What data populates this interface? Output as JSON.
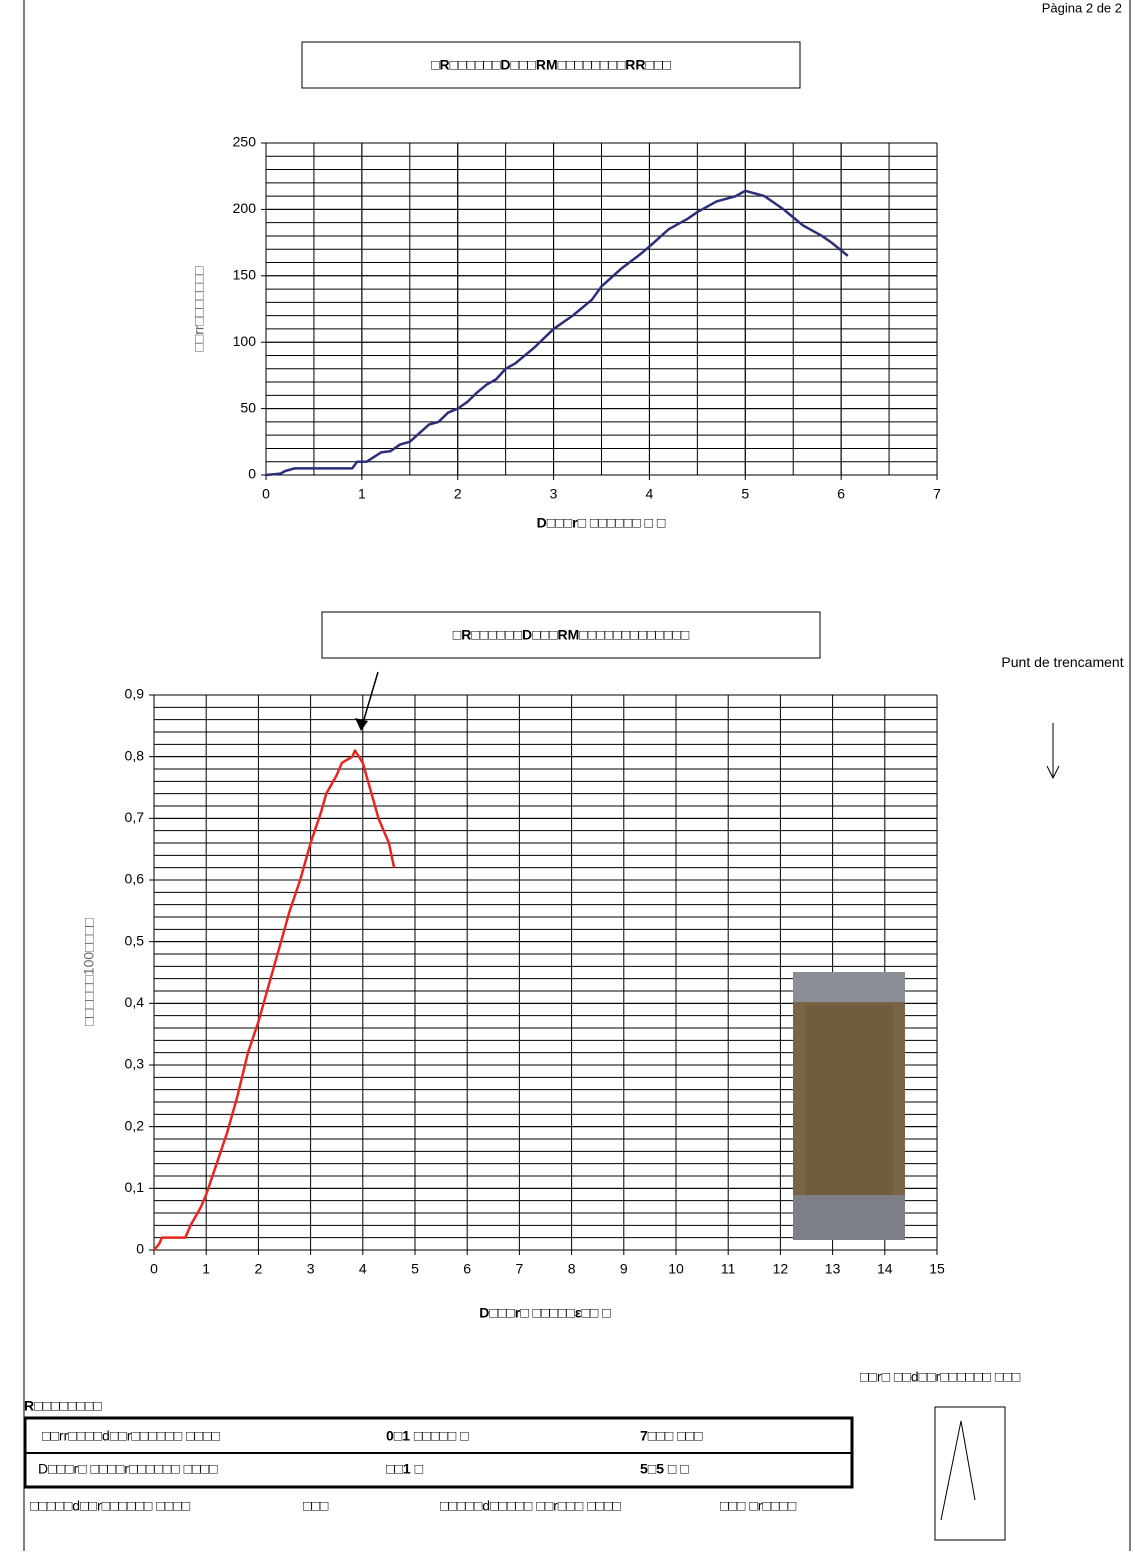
{
  "header": {
    "page": "Pàgina 2 de 2"
  },
  "chart_data": [
    {
      "type": "line",
      "title": "□R□□□□□□D□□□RM□□□□□□□□RR□□□",
      "x_label": "D□□□r□ □□□□□□ □ □",
      "y_label": "□□rr□□□□□□□",
      "x": [
        0,
        0.15,
        0.2,
        0.3,
        0.5,
        0.9,
        0.95,
        1.05,
        1.2,
        1.3,
        1.4,
        1.5,
        1.7,
        1.8,
        1.9,
        2.0,
        2.1,
        2.2,
        2.3,
        2.4,
        2.5,
        2.6,
        2.8,
        3.0,
        3.2,
        3.4,
        3.5,
        3.7,
        3.9,
        4.0,
        4.2,
        4.4,
        4.5,
        4.7,
        4.8,
        4.9,
        5.0,
        5.1,
        5.2,
        5.4,
        5.5,
        5.6,
        5.8,
        5.9,
        6.07
      ],
      "values": [
        0,
        1,
        3,
        5,
        5,
        5,
        10,
        10,
        17,
        18,
        23,
        25,
        38,
        40,
        47,
        50,
        55,
        62,
        68,
        72,
        80,
        84,
        96,
        110,
        120,
        132,
        142,
        155,
        166,
        172,
        185,
        193,
        198,
        206,
        208,
        210,
        214,
        212,
        210,
        200,
        194,
        188,
        180,
        175,
        165
      ],
      "color": "#2b2f7a",
      "xlim": [
        0,
        7
      ],
      "ylim": [
        0,
        250
      ],
      "xticks": [
        0,
        1,
        2,
        3,
        4,
        5,
        6,
        7
      ],
      "yticks": [
        0,
        50,
        100,
        150,
        200,
        250
      ],
      "grid": true,
      "minor_grid": {
        "x": 0.5,
        "y": 10
      }
    },
    {
      "type": "line",
      "title": "□R□□□□□□D□□□RM□□□□□□□□□□□□□",
      "x_label": "D□□□r□ □□□□□ε□□ □",
      "y_label": "□□□□□□100□□□□",
      "x": [
        0,
        0.1,
        0.15,
        0.6,
        0.7,
        0.9,
        1.0,
        1.2,
        1.4,
        1.6,
        1.8,
        2.0,
        2.2,
        2.4,
        2.6,
        2.8,
        3.0,
        3.2,
        3.3,
        3.5,
        3.6,
        3.8,
        3.85,
        4.0,
        4.2,
        4.3,
        4.5,
        4.6
      ],
      "values": [
        0,
        0.01,
        0.02,
        0.02,
        0.04,
        0.07,
        0.09,
        0.14,
        0.19,
        0.25,
        0.32,
        0.37,
        0.43,
        0.49,
        0.55,
        0.6,
        0.66,
        0.71,
        0.74,
        0.77,
        0.79,
        0.8,
        0.81,
        0.79,
        0.73,
        0.7,
        0.66,
        0.62
      ],
      "color": "#e8261f",
      "xlim": [
        0,
        15
      ],
      "ylim": [
        0,
        0.9
      ],
      "xticks": [
        0,
        1,
        2,
        3,
        4,
        5,
        6,
        7,
        8,
        9,
        10,
        11,
        12,
        13,
        14,
        15
      ],
      "yticks": [
        0,
        {
          "value": 0.1,
          "label": "0,1"
        },
        {
          "value": 0.2,
          "label": "0,2"
        },
        {
          "value": 0.3,
          "label": "0,3"
        },
        {
          "value": 0.4,
          "label": "0,4"
        },
        {
          "value": 0.5,
          "label": "0,5"
        },
        {
          "value": 0.6,
          "label": "0,6"
        },
        {
          "value": 0.7,
          "label": "0,7"
        },
        {
          "value": 0.8,
          "label": "0,8"
        },
        {
          "value": 0.9,
          "label": "0,9"
        }
      ],
      "grid": true,
      "minor_grid": {
        "y": 0.02
      },
      "annotation": "Punt de trencament"
    }
  ],
  "results": {
    "title": "R□□□□□□□□",
    "rows": [
      [
        "□□rr□□□□d□□r□□□□□□ □□□□",
        "0□1 □□□□□ □",
        "7□□□ □□□"
      ],
      [
        "D□□□r□ □□□□r□□□□□□ □□□□",
        "□□1 □",
        "5□5 □ □"
      ]
    ],
    "footer": [
      "□□□□□d□□r□□□□□□ □□□□",
      "□□□",
      "□□□□□d□□□□□ □□r□□□ □□□□",
      "□□□ □r□□□□"
    ],
    "sketch_caption": "□□r□ □□d□□r□□□□□□ □□□"
  }
}
